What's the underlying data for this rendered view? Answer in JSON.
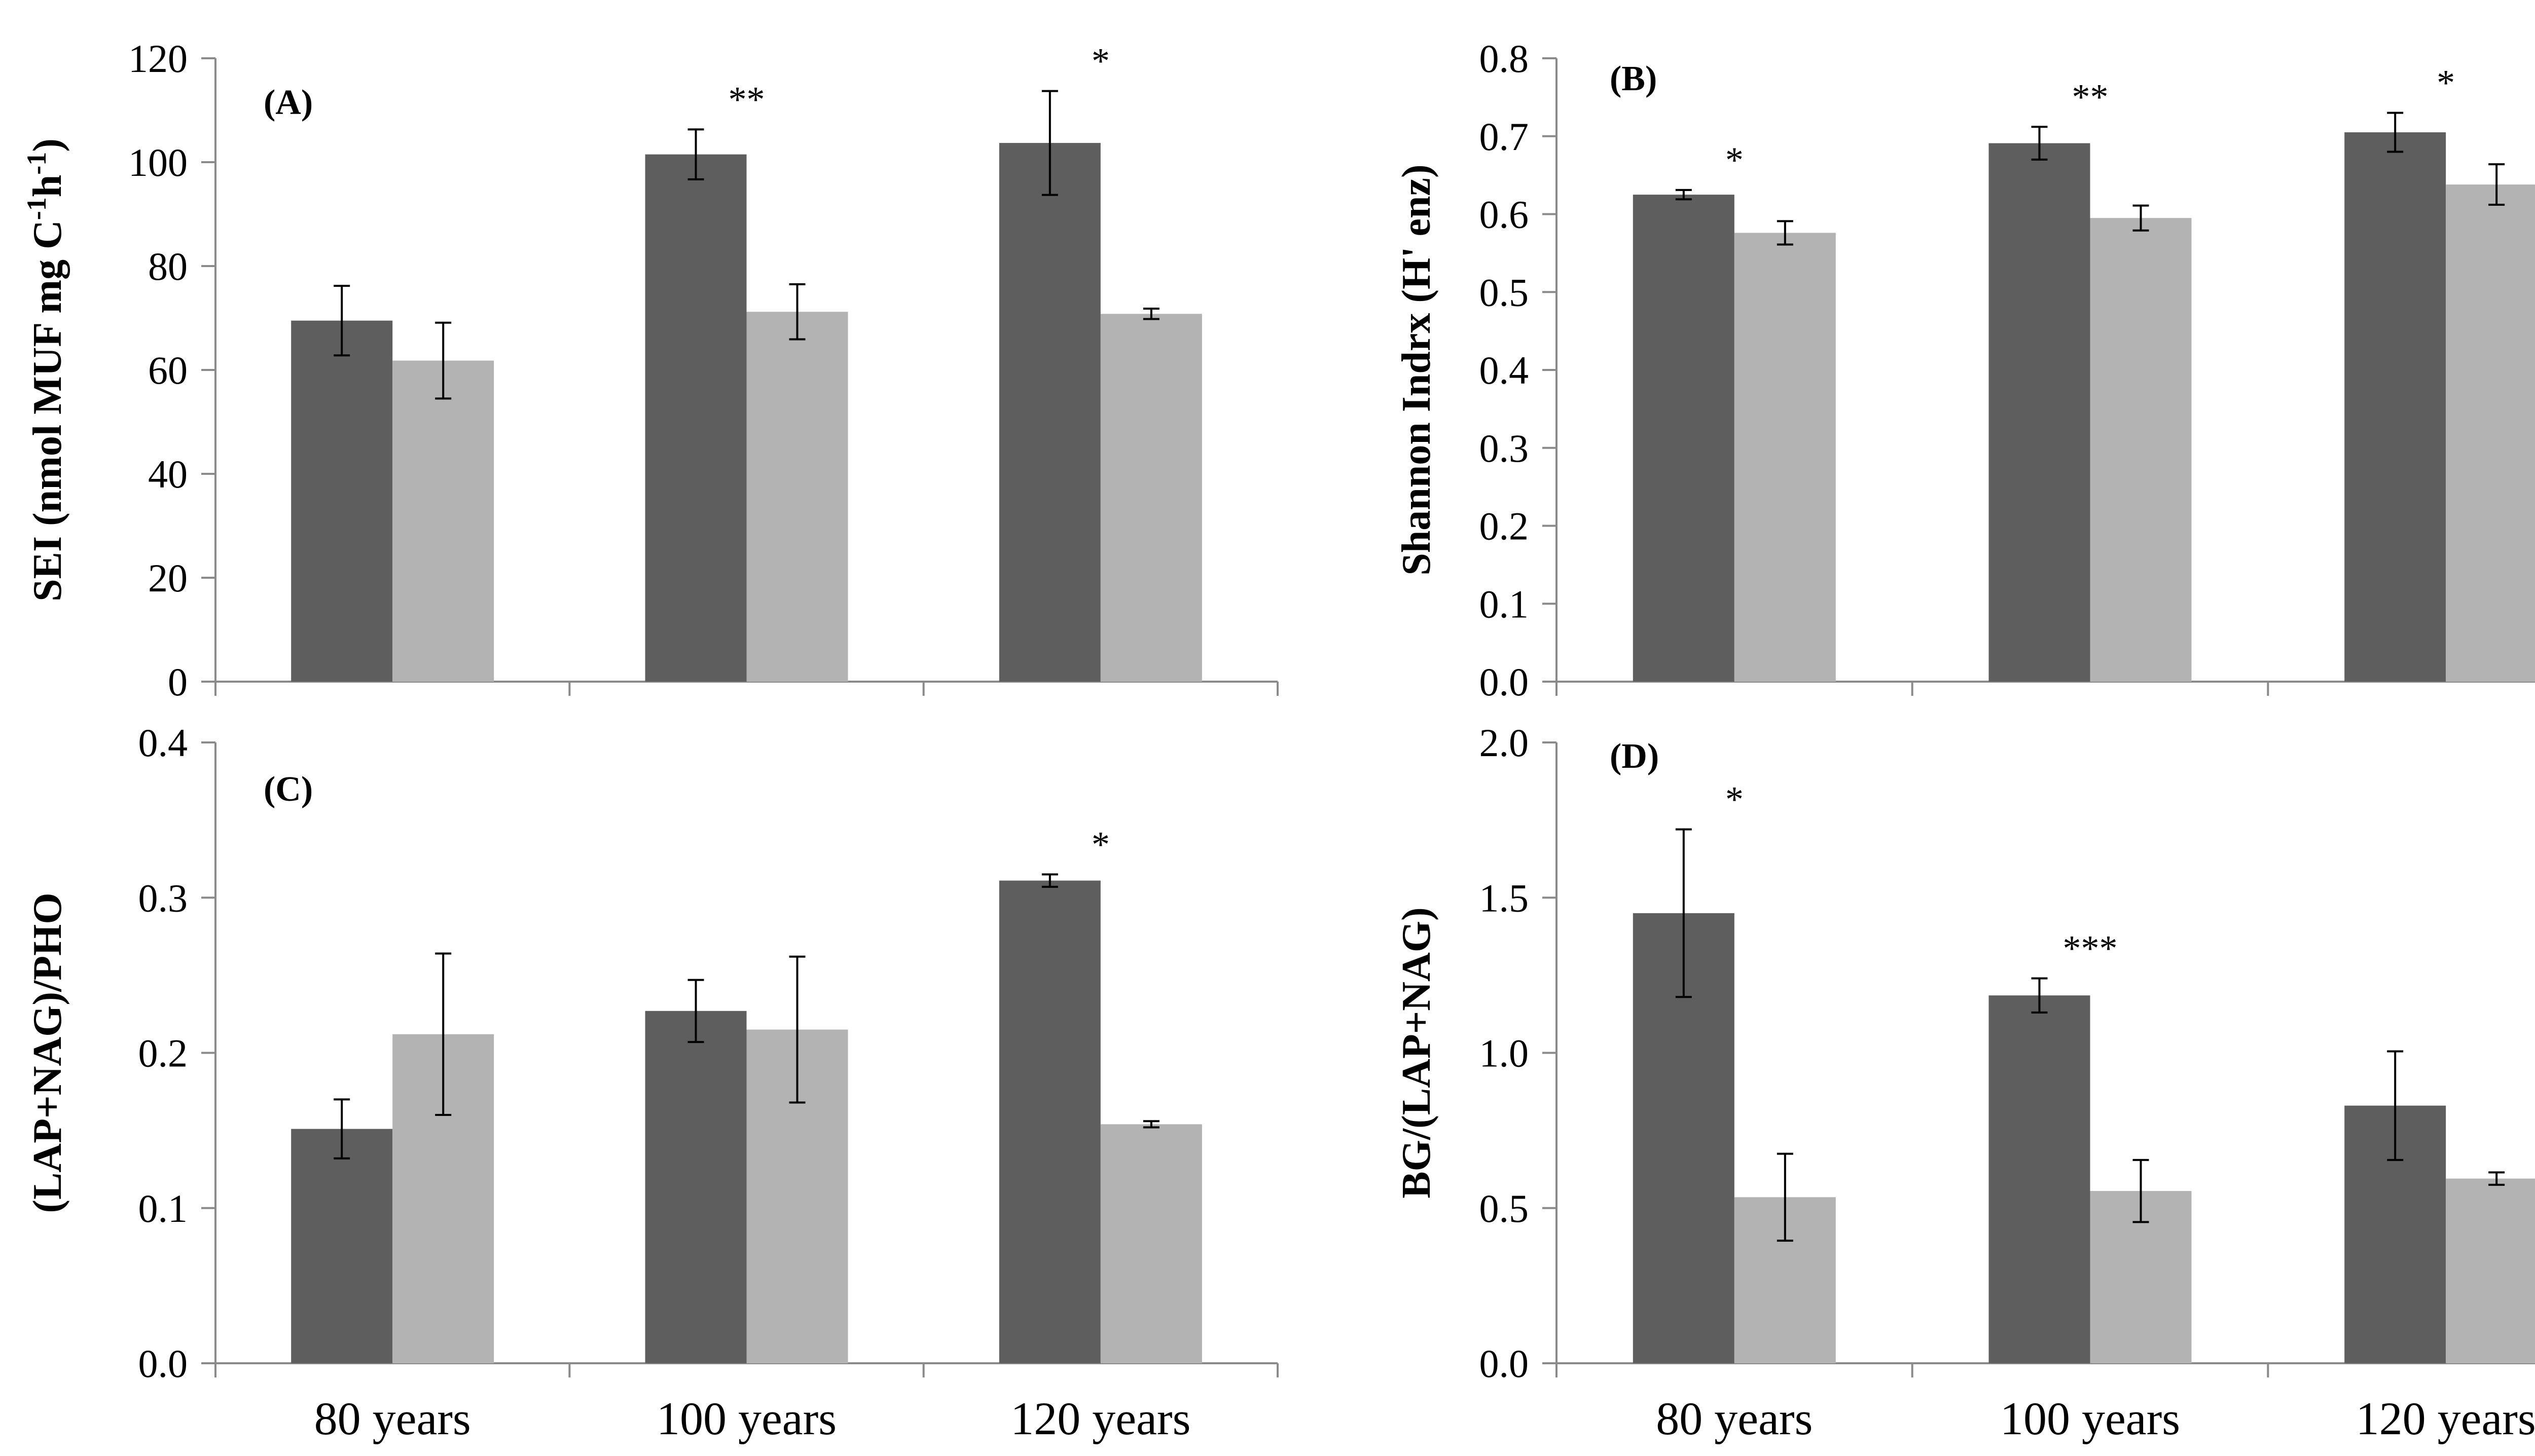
{
  "colors": {
    "dark": "#5e5e5e",
    "light": "#b3b3b3",
    "axis": "#8a8a8a",
    "error": "#000000"
  },
  "chart_data": [
    {
      "type": "bar",
      "panel": "(A)",
      "ylabel": "SEI (nmol MUF mg C",
      "ylabel_sup1": "-1",
      "ylabel_mid": "h",
      "ylabel_sup2": "-1",
      "ylabel_end": ")",
      "ylim": [
        0,
        120
      ],
      "yticks": [
        "0",
        "20",
        "40",
        "60",
        "80",
        "100",
        "120"
      ],
      "categories": [
        "80 years",
        "100 years",
        "120 years"
      ],
      "series": [
        {
          "name": "dark",
          "values": [
            69.5,
            101.5,
            103.7
          ],
          "errors": [
            6.7,
            4.8,
            10.0
          ]
        },
        {
          "name": "light",
          "values": [
            61.8,
            71.2,
            70.8
          ],
          "errors": [
            7.3,
            5.3,
            1.0
          ]
        }
      ],
      "significance": [
        "",
        "**",
        "*"
      ]
    },
    {
      "type": "bar",
      "panel": "(B)",
      "ylabel": "Shannon Indrx (H' enz)",
      "ylim": [
        0,
        0.8
      ],
      "yticks": [
        "0.0",
        "0.1",
        "0.2",
        "0.3",
        "0.4",
        "0.5",
        "0.6",
        "0.7",
        "0.8"
      ],
      "categories": [
        "80 years",
        "100 years",
        "120 years"
      ],
      "series": [
        {
          "name": "dark",
          "values": [
            0.625,
            0.691,
            0.705
          ],
          "errors": [
            0.006,
            0.021,
            0.025
          ]
        },
        {
          "name": "light",
          "values": [
            0.576,
            0.595,
            0.638
          ],
          "errors": [
            0.015,
            0.016,
            0.026
          ]
        }
      ],
      "significance": [
        "*",
        "**",
        "*"
      ]
    },
    {
      "type": "bar",
      "panel": "(C)",
      "ylabel": "(LAP+NAG)/PHO",
      "ylim": [
        0,
        0.4
      ],
      "yticks": [
        "0.0",
        "0.1",
        "0.2",
        "0.3",
        "0.4"
      ],
      "categories": [
        "80 years",
        "100 years",
        "120 years"
      ],
      "series": [
        {
          "name": "dark",
          "values": [
            0.151,
            0.227,
            0.311
          ],
          "errors": [
            0.019,
            0.02,
            0.004
          ]
        },
        {
          "name": "light",
          "values": [
            0.212,
            0.215,
            0.154
          ],
          "errors": [
            0.052,
            0.047,
            0.002
          ]
        }
      ],
      "significance": [
        "",
        "",
        "*"
      ]
    },
    {
      "type": "bar",
      "panel": "(D)",
      "ylabel": "BG/(LAP+NAG)",
      "ylim": [
        0,
        2.0
      ],
      "yticks": [
        "0.0",
        "0.5",
        "1.0",
        "1.5",
        "2.0"
      ],
      "categories": [
        "80 years",
        "100 years",
        "120 years"
      ],
      "series": [
        {
          "name": "dark",
          "values": [
            1.45,
            1.185,
            0.83
          ],
          "errors": [
            0.27,
            0.055,
            0.175
          ]
        },
        {
          "name": "light",
          "values": [
            0.535,
            0.555,
            0.595
          ],
          "errors": [
            0.14,
            0.1,
            0.02
          ]
        }
      ],
      "significance": [
        "*",
        "***",
        ""
      ]
    }
  ]
}
